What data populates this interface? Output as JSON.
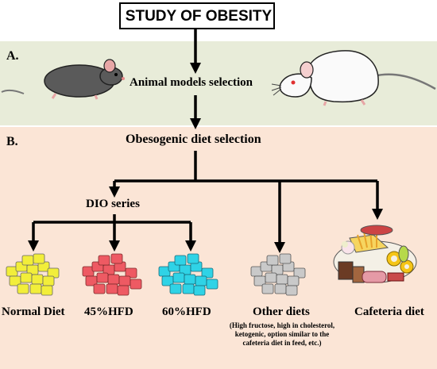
{
  "title": "STUDY OF OBESITY",
  "sections": {
    "a_label": "A.",
    "a_text": "Animal models selection",
    "b_label": "B.",
    "b_text": "Obesogenic diet selection",
    "dio": "DIO series"
  },
  "diets": {
    "normal": "Normal Diet",
    "hfd45": "45%HFD",
    "hfd60": "60%HFD",
    "other": "Other diets",
    "other_note": "(High fructose, high in cholesterol, ketogenic, option similar to the cafeteria diet in feed, etc.)",
    "cafeteria": "Cafeteria diet"
  },
  "colors": {
    "panel_a": "#e8ecd9",
    "panel_b": "#fbe5d6",
    "normal_pellets": "#f2ee3a",
    "hfd45_pellets": "#ee5a63",
    "hfd60_pellets": "#2fd3e6",
    "other_pellets": "#c9c9c9"
  },
  "icons": [
    "mouse-icon",
    "rat-icon",
    "pellets-icon",
    "cafeteria-food-icon"
  ]
}
